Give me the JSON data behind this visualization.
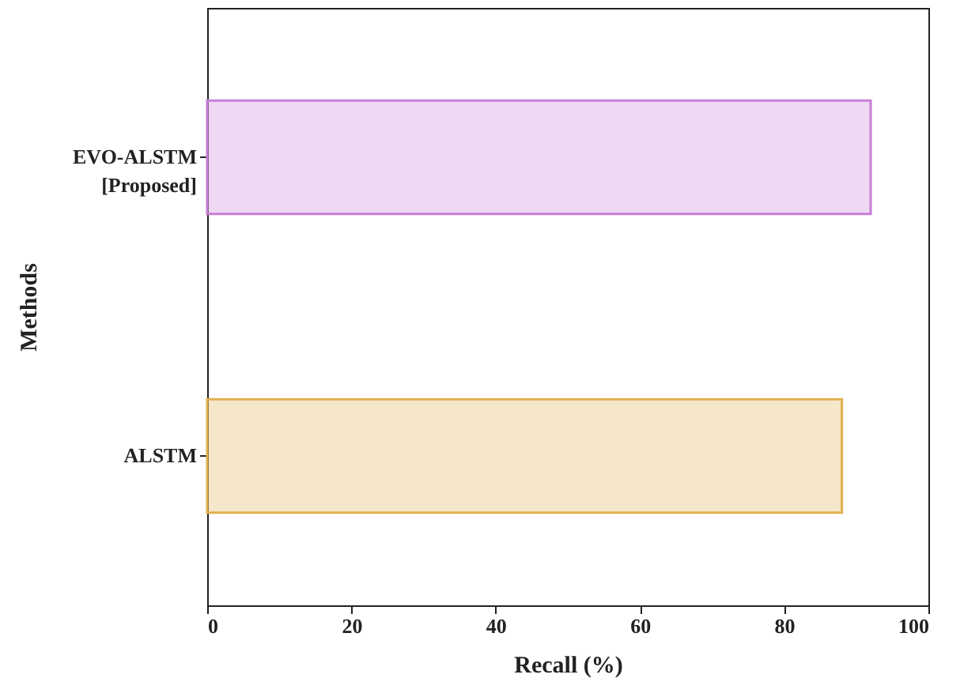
{
  "chart_data": {
    "type": "bar",
    "orientation": "horizontal",
    "xlabel": "Recall (%)",
    "ylabel": "Methods",
    "categories": [
      "EVO-ALSTM [Proposed]",
      "ALSTM"
    ],
    "values": [
      92,
      88
    ],
    "colors": [
      "#c77fd6",
      "#e0b050"
    ],
    "xlim": [
      0,
      100
    ],
    "xticks": [
      0,
      20,
      40,
      60,
      80,
      100
    ]
  }
}
